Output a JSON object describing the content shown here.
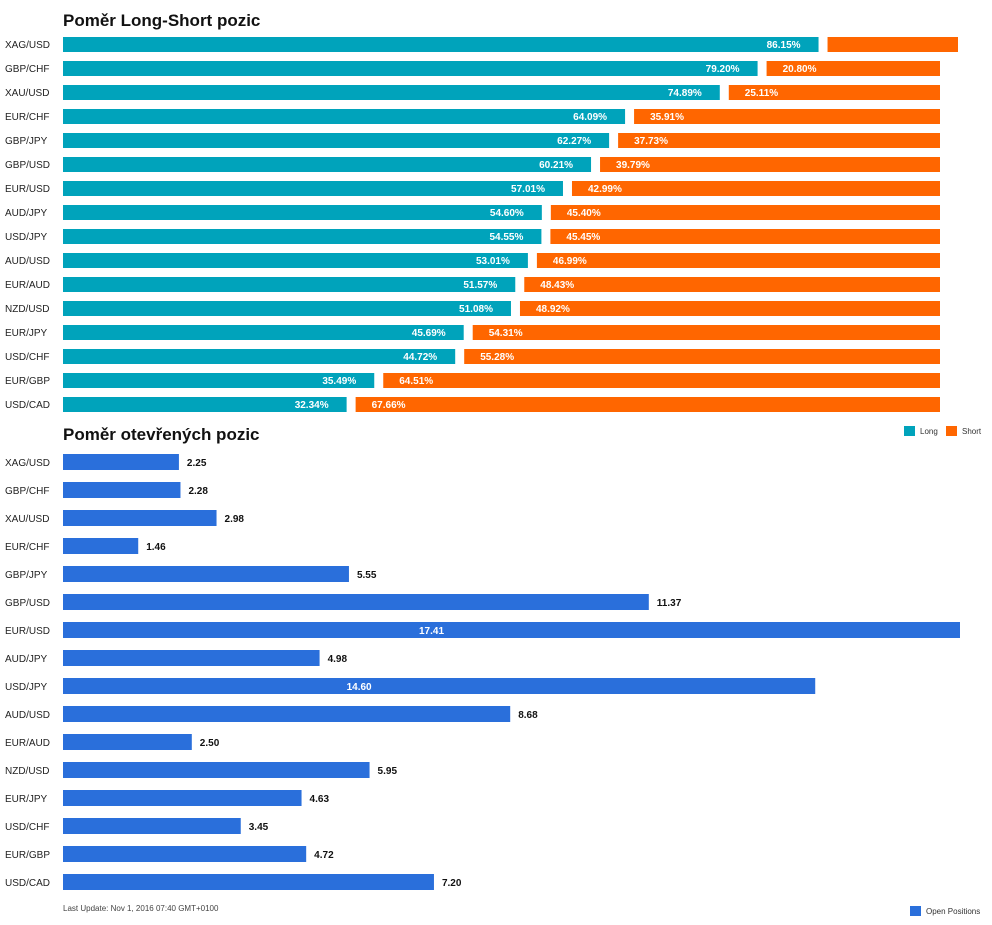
{
  "chart_data": [
    {
      "type": "bar",
      "stacked": true,
      "orientation": "horizontal",
      "title": "Poměr Long-Short pozic",
      "categories": [
        "XAG/USD",
        "GBP/CHF",
        "XAU/USD",
        "EUR/CHF",
        "GBP/JPY",
        "GBP/USD",
        "EUR/USD",
        "AUD/JPY",
        "USD/JPY",
        "AUD/USD",
        "EUR/AUD",
        "NZD/USD",
        "EUR/JPY",
        "USD/CHF",
        "EUR/GBP",
        "USD/CAD"
      ],
      "series": [
        {
          "name": "Long",
          "color": "#00a3bb",
          "values": [
            86.15,
            79.2,
            74.89,
            64.09,
            62.27,
            60.21,
            57.01,
            54.6,
            54.55,
            53.01,
            51.57,
            51.08,
            45.69,
            44.72,
            35.49,
            32.34
          ]
        },
        {
          "name": "Short",
          "color": "#ff6600",
          "values": [
            13.85,
            20.8,
            25.11,
            35.91,
            37.73,
            39.79,
            42.99,
            45.4,
            45.45,
            46.99,
            48.43,
            48.92,
            54.31,
            55.28,
            64.51,
            67.66
          ]
        }
      ],
      "value_labels": {
        "long": [
          "86.15%",
          "79.20%",
          "74.89%",
          "64.09%",
          "62.27%",
          "60.21%",
          "57.01%",
          "54.60%",
          "54.55%",
          "53.01%",
          "51.57%",
          "51.08%",
          "45.69%",
          "44.72%",
          "35.49%",
          "32.34%"
        ],
        "short": [
          "",
          "20.80%",
          "25.11%",
          "35.91%",
          "37.73%",
          "39.79%",
          "42.99%",
          "45.40%",
          "45.45%",
          "46.99%",
          "48.43%",
          "48.92%",
          "54.31%",
          "55.28%",
          "64.51%",
          "67.66%"
        ]
      },
      "xlim": [
        0,
        100
      ],
      "legend": "right"
    },
    {
      "type": "bar",
      "orientation": "horizontal",
      "title": "Poměr otevřených pozic",
      "categories": [
        "XAG/USD",
        "GBP/CHF",
        "XAU/USD",
        "EUR/CHF",
        "GBP/JPY",
        "GBP/USD",
        "EUR/USD",
        "AUD/JPY",
        "USD/JPY",
        "AUD/USD",
        "EUR/AUD",
        "NZD/USD",
        "EUR/JPY",
        "USD/CHF",
        "EUR/GBP",
        "USD/CAD"
      ],
      "series": [
        {
          "name": "Open Positions",
          "color": "#2a6fdb",
          "values": [
            2.25,
            2.28,
            2.98,
            1.46,
            5.55,
            11.37,
            17.41,
            4.98,
            14.6,
            8.68,
            2.5,
            5.95,
            4.63,
            3.45,
            4.72,
            7.2
          ]
        }
      ],
      "value_labels": [
        "2.25",
        "2.28",
        "2.98",
        "1.46",
        "5.55",
        "11.37",
        "17.41",
        "4.98",
        "14.60",
        "8.68",
        "2.50",
        "5.95",
        "4.63",
        "3.45",
        "4.72",
        "7.20"
      ],
      "xlim": [
        0,
        17.41
      ],
      "legend": "bottom-right"
    }
  ],
  "legend_top": {
    "long": "Long",
    "short": "Short"
  },
  "legend_bottom": {
    "open": "Open Positions"
  },
  "footer": "Last Update: Nov 1, 2016 07:40 GMT+0100"
}
